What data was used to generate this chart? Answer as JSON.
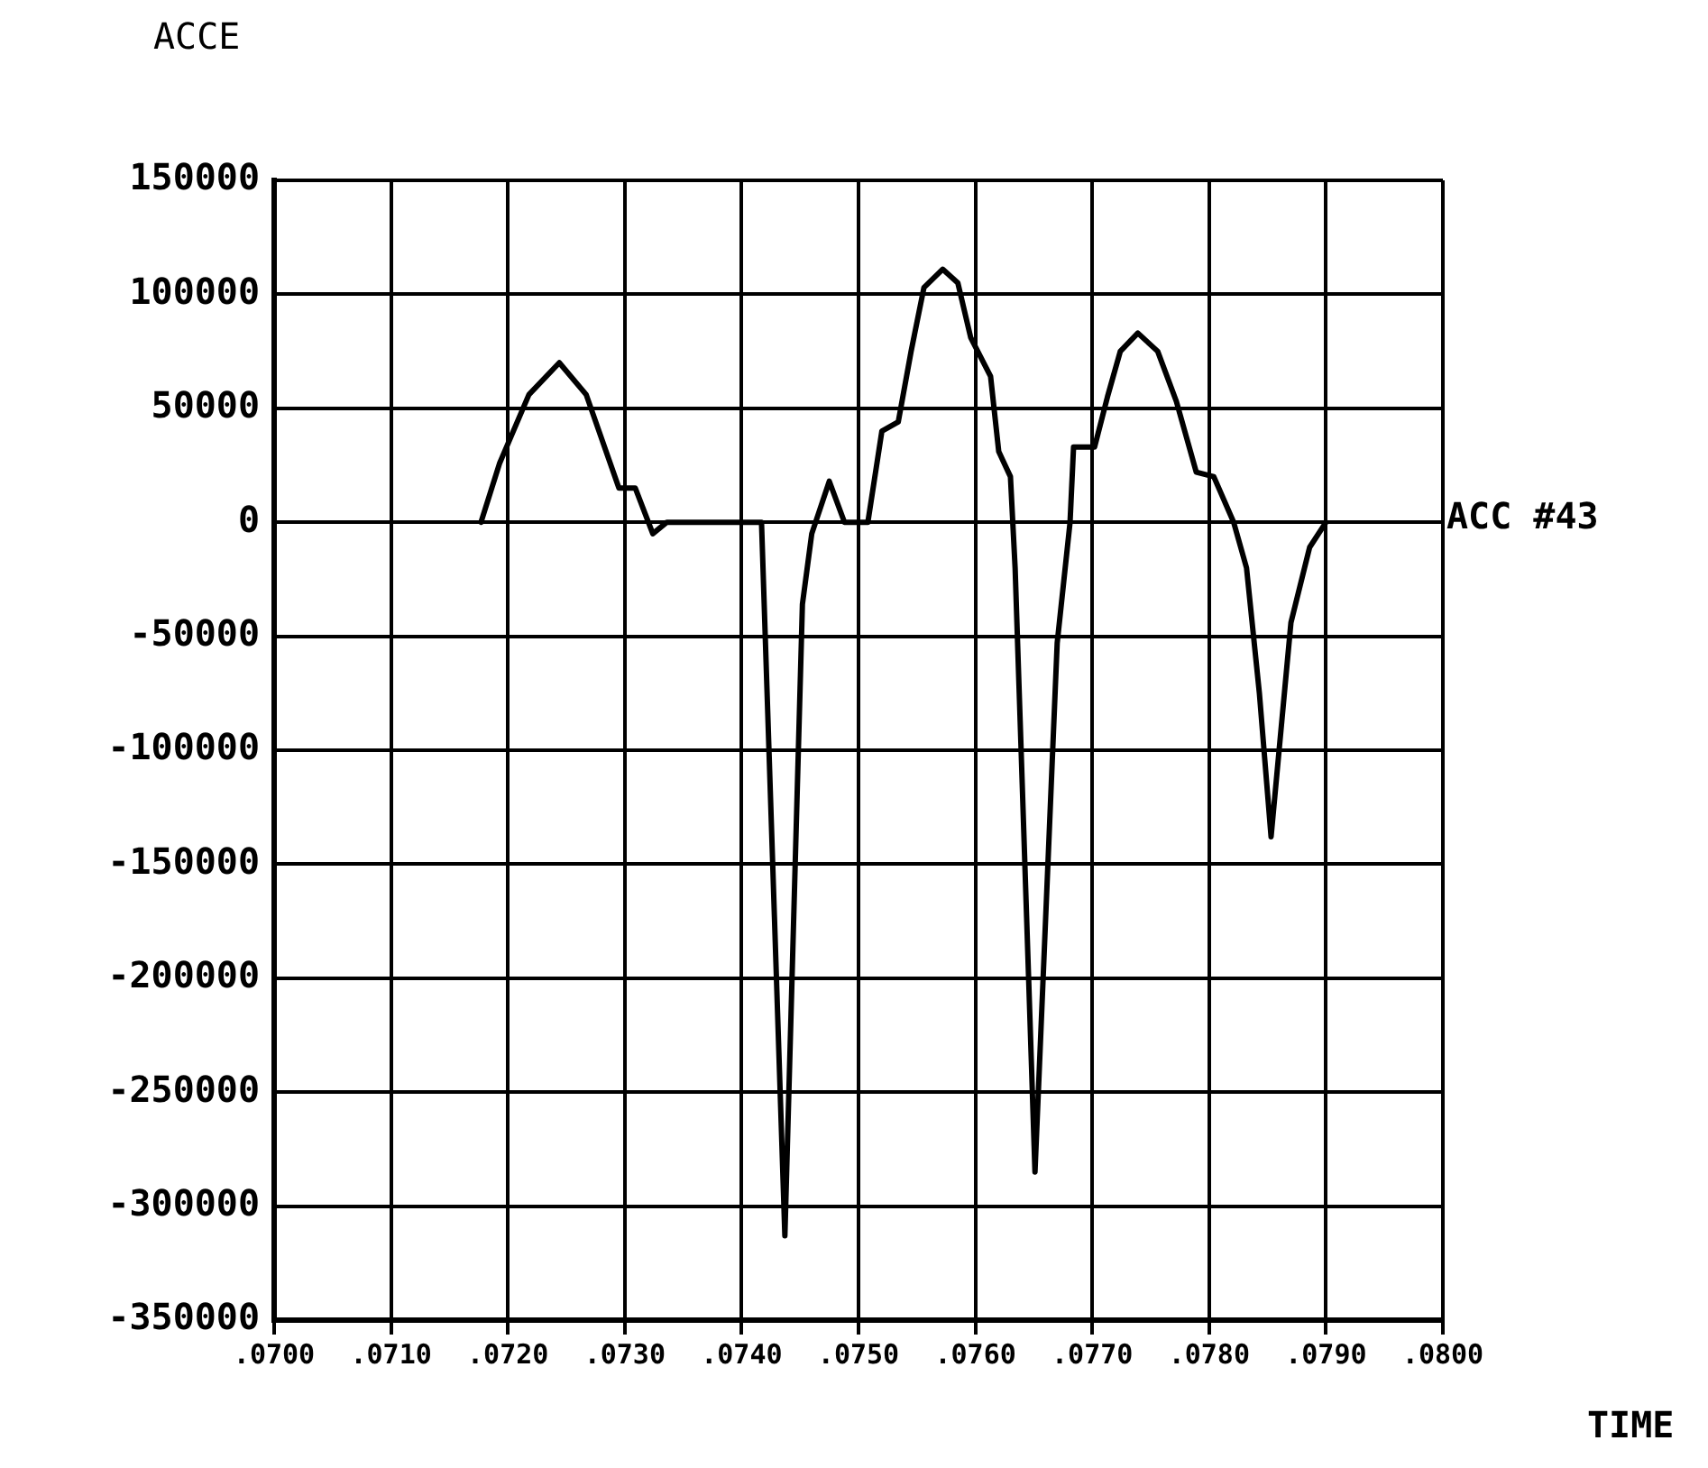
{
  "chart_data": {
    "type": "line",
    "ylabel": "ACCE",
    "xlabel": "TIME",
    "grid": true,
    "legend": false,
    "marker": "none",
    "line_style": "solid",
    "xlim": [
      0.07,
      0.08
    ],
    "xticks": [
      {
        "value": 0.07,
        "label": ".0700"
      },
      {
        "value": 0.071,
        "label": ".0710"
      },
      {
        "value": 0.072,
        "label": ".0720"
      },
      {
        "value": 0.073,
        "label": ".0730"
      },
      {
        "value": 0.074,
        "label": ".0740"
      },
      {
        "value": 0.075,
        "label": ".0750"
      },
      {
        "value": 0.076,
        "label": ".0760"
      },
      {
        "value": 0.077,
        "label": ".0770"
      },
      {
        "value": 0.078,
        "label": ".0780"
      },
      {
        "value": 0.079,
        "label": ".0790"
      },
      {
        "value": 0.08,
        "label": ".0800"
      }
    ],
    "ylim": [
      -350000,
      150000
    ],
    "yticks": [
      -350000,
      -300000,
      -250000,
      -200000,
      -150000,
      -100000,
      -50000,
      0,
      50000,
      100000,
      150000
    ],
    "series": [
      {
        "name": "ACC #43",
        "color": "#000000",
        "x": [
          0.07177,
          0.07193,
          0.07218,
          0.07244,
          0.07267,
          0.07295,
          0.07309,
          0.07324,
          0.07336,
          0.07417,
          0.07437,
          0.07452,
          0.0746,
          0.07475,
          0.07488,
          0.07508,
          0.0752,
          0.07534,
          0.07545,
          0.07556,
          0.07572,
          0.07585,
          0.07596,
          0.07613,
          0.0762,
          0.0763,
          0.07634,
          0.07651,
          0.0767,
          0.07681,
          0.07684,
          0.07702,
          0.07713,
          0.07724,
          0.07739,
          0.07756,
          0.07772,
          0.07789,
          0.07804,
          0.07821,
          0.07832,
          0.07843,
          0.07853,
          0.0787,
          0.07886,
          0.079
        ],
        "values": [
          0,
          26000,
          56000,
          70000,
          56000,
          15000,
          15000,
          -5000,
          0,
          0,
          -313000,
          -36000,
          -5000,
          18000,
          0,
          0,
          40000,
          44000,
          75000,
          103000,
          111000,
          105000,
          81000,
          64000,
          31000,
          20000,
          -20000,
          -285000,
          -53000,
          0,
          33000,
          33000,
          55000,
          75000,
          83000,
          75000,
          53000,
          22000,
          20000,
          0,
          -20000,
          -75000,
          -138000,
          -44000,
          -11000,
          0
        ]
      }
    ]
  }
}
